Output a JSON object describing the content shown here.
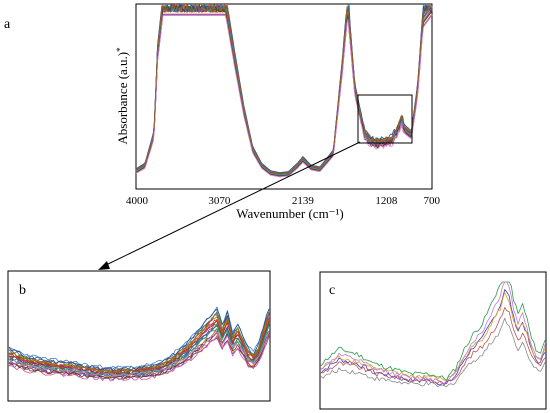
{
  "panels": {
    "a": {
      "label": "a"
    },
    "b": {
      "label": "b"
    },
    "c": {
      "label": "c"
    }
  },
  "chart_data": [
    {
      "id": "a",
      "type": "line",
      "title": "",
      "xlabel": "Wavenumber (cm⁻¹)",
      "ylabel": "Absorbance (a.u.)",
      "ylabel_marker": "*",
      "xlim": [
        4000,
        700
      ],
      "x_reversed": true,
      "x_ticks": [
        4000,
        3070,
        2139,
        1208,
        700
      ],
      "grid": false,
      "legend": "none",
      "zoom_box_x": [
        1500,
        1000
      ],
      "series_count": 24,
      "mean_spectrum": {
        "x": [
          4000,
          3900,
          3800,
          3760,
          3700,
          3600,
          3500,
          3400,
          3300,
          3200,
          3100,
          3000,
          2900,
          2800,
          2700,
          2600,
          2500,
          2400,
          2300,
          2200,
          2139,
          2050,
          1950,
          1800,
          1700,
          1640,
          1560,
          1450,
          1380,
          1300,
          1240,
          1208,
          1150,
          1080,
          1040,
          1000,
          930,
          860,
          800,
          700
        ],
        "y": [
          0.1,
          0.13,
          0.3,
          0.75,
          1.02,
          1.02,
          1.02,
          1.02,
          1.02,
          1.02,
          1.02,
          1.02,
          0.72,
          0.44,
          0.22,
          0.13,
          0.09,
          0.08,
          0.085,
          0.13,
          0.165,
          0.12,
          0.11,
          0.2,
          0.68,
          1.02,
          0.55,
          0.3,
          0.265,
          0.255,
          0.26,
          0.265,
          0.27,
          0.33,
          0.38,
          0.33,
          0.3,
          0.55,
          0.95,
          1.02
        ]
      },
      "series_colors": [
        "#3b3bd6",
        "#c21c7a",
        "#8a5a2b",
        "#e07b1a",
        "#2a8a3a",
        "#7a2aa0",
        "#d04040",
        "#1a8a8a",
        "#b08a10",
        "#5050c0",
        "#a02060",
        "#606060",
        "#c06000",
        "#208040",
        "#8040c0",
        "#e05090",
        "#4080d0",
        "#909020",
        "#b03030",
        "#30a0a0",
        "#6a3a1a",
        "#d080d0",
        "#2050a0",
        "#a06020"
      ]
    },
    {
      "id": "b",
      "type": "line",
      "title": "",
      "xlabel": "",
      "ylabel": "",
      "description_range_x": [
        1500,
        1000
      ],
      "series_count": 24,
      "mean_spectrum": {
        "x": [
          1500,
          1460,
          1420,
          1380,
          1340,
          1300,
          1260,
          1220,
          1200,
          1180,
          1160,
          1140,
          1120,
          1100,
          1090,
          1080,
          1070,
          1060,
          1050,
          1040,
          1030,
          1020,
          1010,
          1000
        ],
        "y": [
          0.3,
          0.28,
          0.27,
          0.265,
          0.255,
          0.25,
          0.252,
          0.26,
          0.27,
          0.29,
          0.31,
          0.34,
          0.37,
          0.4,
          0.36,
          0.39,
          0.34,
          0.36,
          0.33,
          0.3,
          0.29,
          0.31,
          0.36,
          0.4
        ]
      }
    },
    {
      "id": "c",
      "type": "line",
      "title": "",
      "xlabel": "",
      "ylabel": "",
      "series_count": 6,
      "series_colors": [
        "#3b3bd6",
        "#d9a020",
        "#c05050",
        "#8a8a8a",
        "#2a9a4a",
        "#c27ad0"
      ],
      "mean_spectrum": {
        "x": [
          1500,
          1460,
          1420,
          1380,
          1340,
          1300,
          1260,
          1220,
          1200,
          1180,
          1160,
          1140,
          1120,
          1100,
          1090,
          1080,
          1070,
          1060,
          1050,
          1040,
          1030,
          1020,
          1010,
          1000
        ],
        "y": [
          0.28,
          0.31,
          0.3,
          0.28,
          0.27,
          0.26,
          0.26,
          0.25,
          0.27,
          0.31,
          0.34,
          0.36,
          0.4,
          0.44,
          0.48,
          0.46,
          0.41,
          0.38,
          0.4,
          0.37,
          0.33,
          0.31,
          0.3,
          0.33
        ]
      }
    }
  ]
}
